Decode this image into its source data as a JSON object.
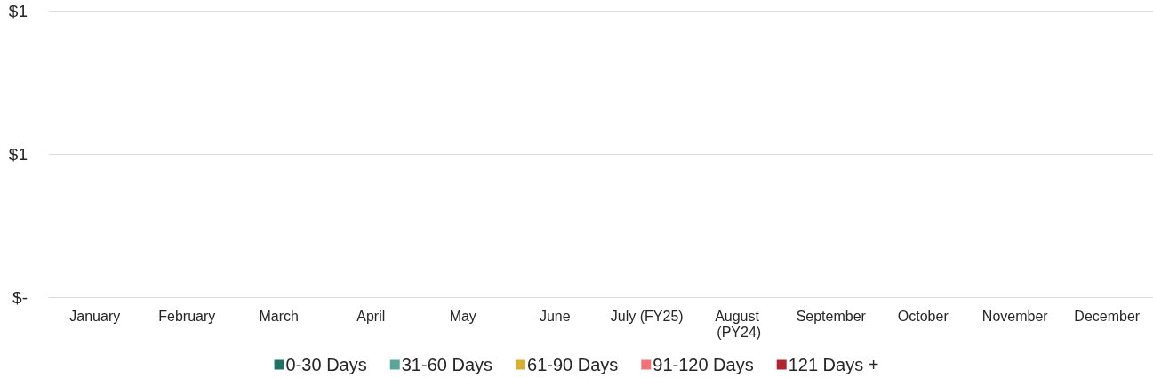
{
  "chart_data": {
    "type": "bar",
    "categories": [
      "January",
      "February",
      "March",
      "April",
      "May",
      "June",
      "July (FY25)",
      "August (PY24)",
      "September",
      "October",
      "November",
      "December"
    ],
    "series": [
      {
        "name": "0-30 Days",
        "color": "#1e7263",
        "values": [
          null,
          null,
          null,
          null,
          null,
          null,
          null,
          null,
          null,
          null,
          null,
          null
        ]
      },
      {
        "name": "31-60 Days",
        "color": "#5ba69b",
        "values": [
          null,
          null,
          null,
          null,
          null,
          null,
          null,
          null,
          null,
          null,
          null,
          null
        ]
      },
      {
        "name": "61-90 Days",
        "color": "#d6af37",
        "values": [
          null,
          null,
          null,
          null,
          null,
          null,
          null,
          null,
          null,
          null,
          null,
          null
        ]
      },
      {
        "name": "91-120 Days",
        "color": "#ef747a",
        "values": [
          null,
          null,
          null,
          null,
          null,
          null,
          null,
          null,
          null,
          null,
          null,
          null
        ]
      },
      {
        "name": "121 Days +",
        "color": "#b0242f",
        "values": [
          null,
          null,
          null,
          null,
          null,
          null,
          null,
          null,
          null,
          null,
          null,
          null
        ]
      }
    ],
    "ylim": [
      0,
      1
    ],
    "yticks": [
      {
        "value": 0,
        "label": "$-"
      },
      {
        "value": 0.5,
        "label": "$1"
      },
      {
        "value": 1,
        "label": "$1"
      }
    ],
    "grid": "y",
    "legend": "bottom"
  }
}
